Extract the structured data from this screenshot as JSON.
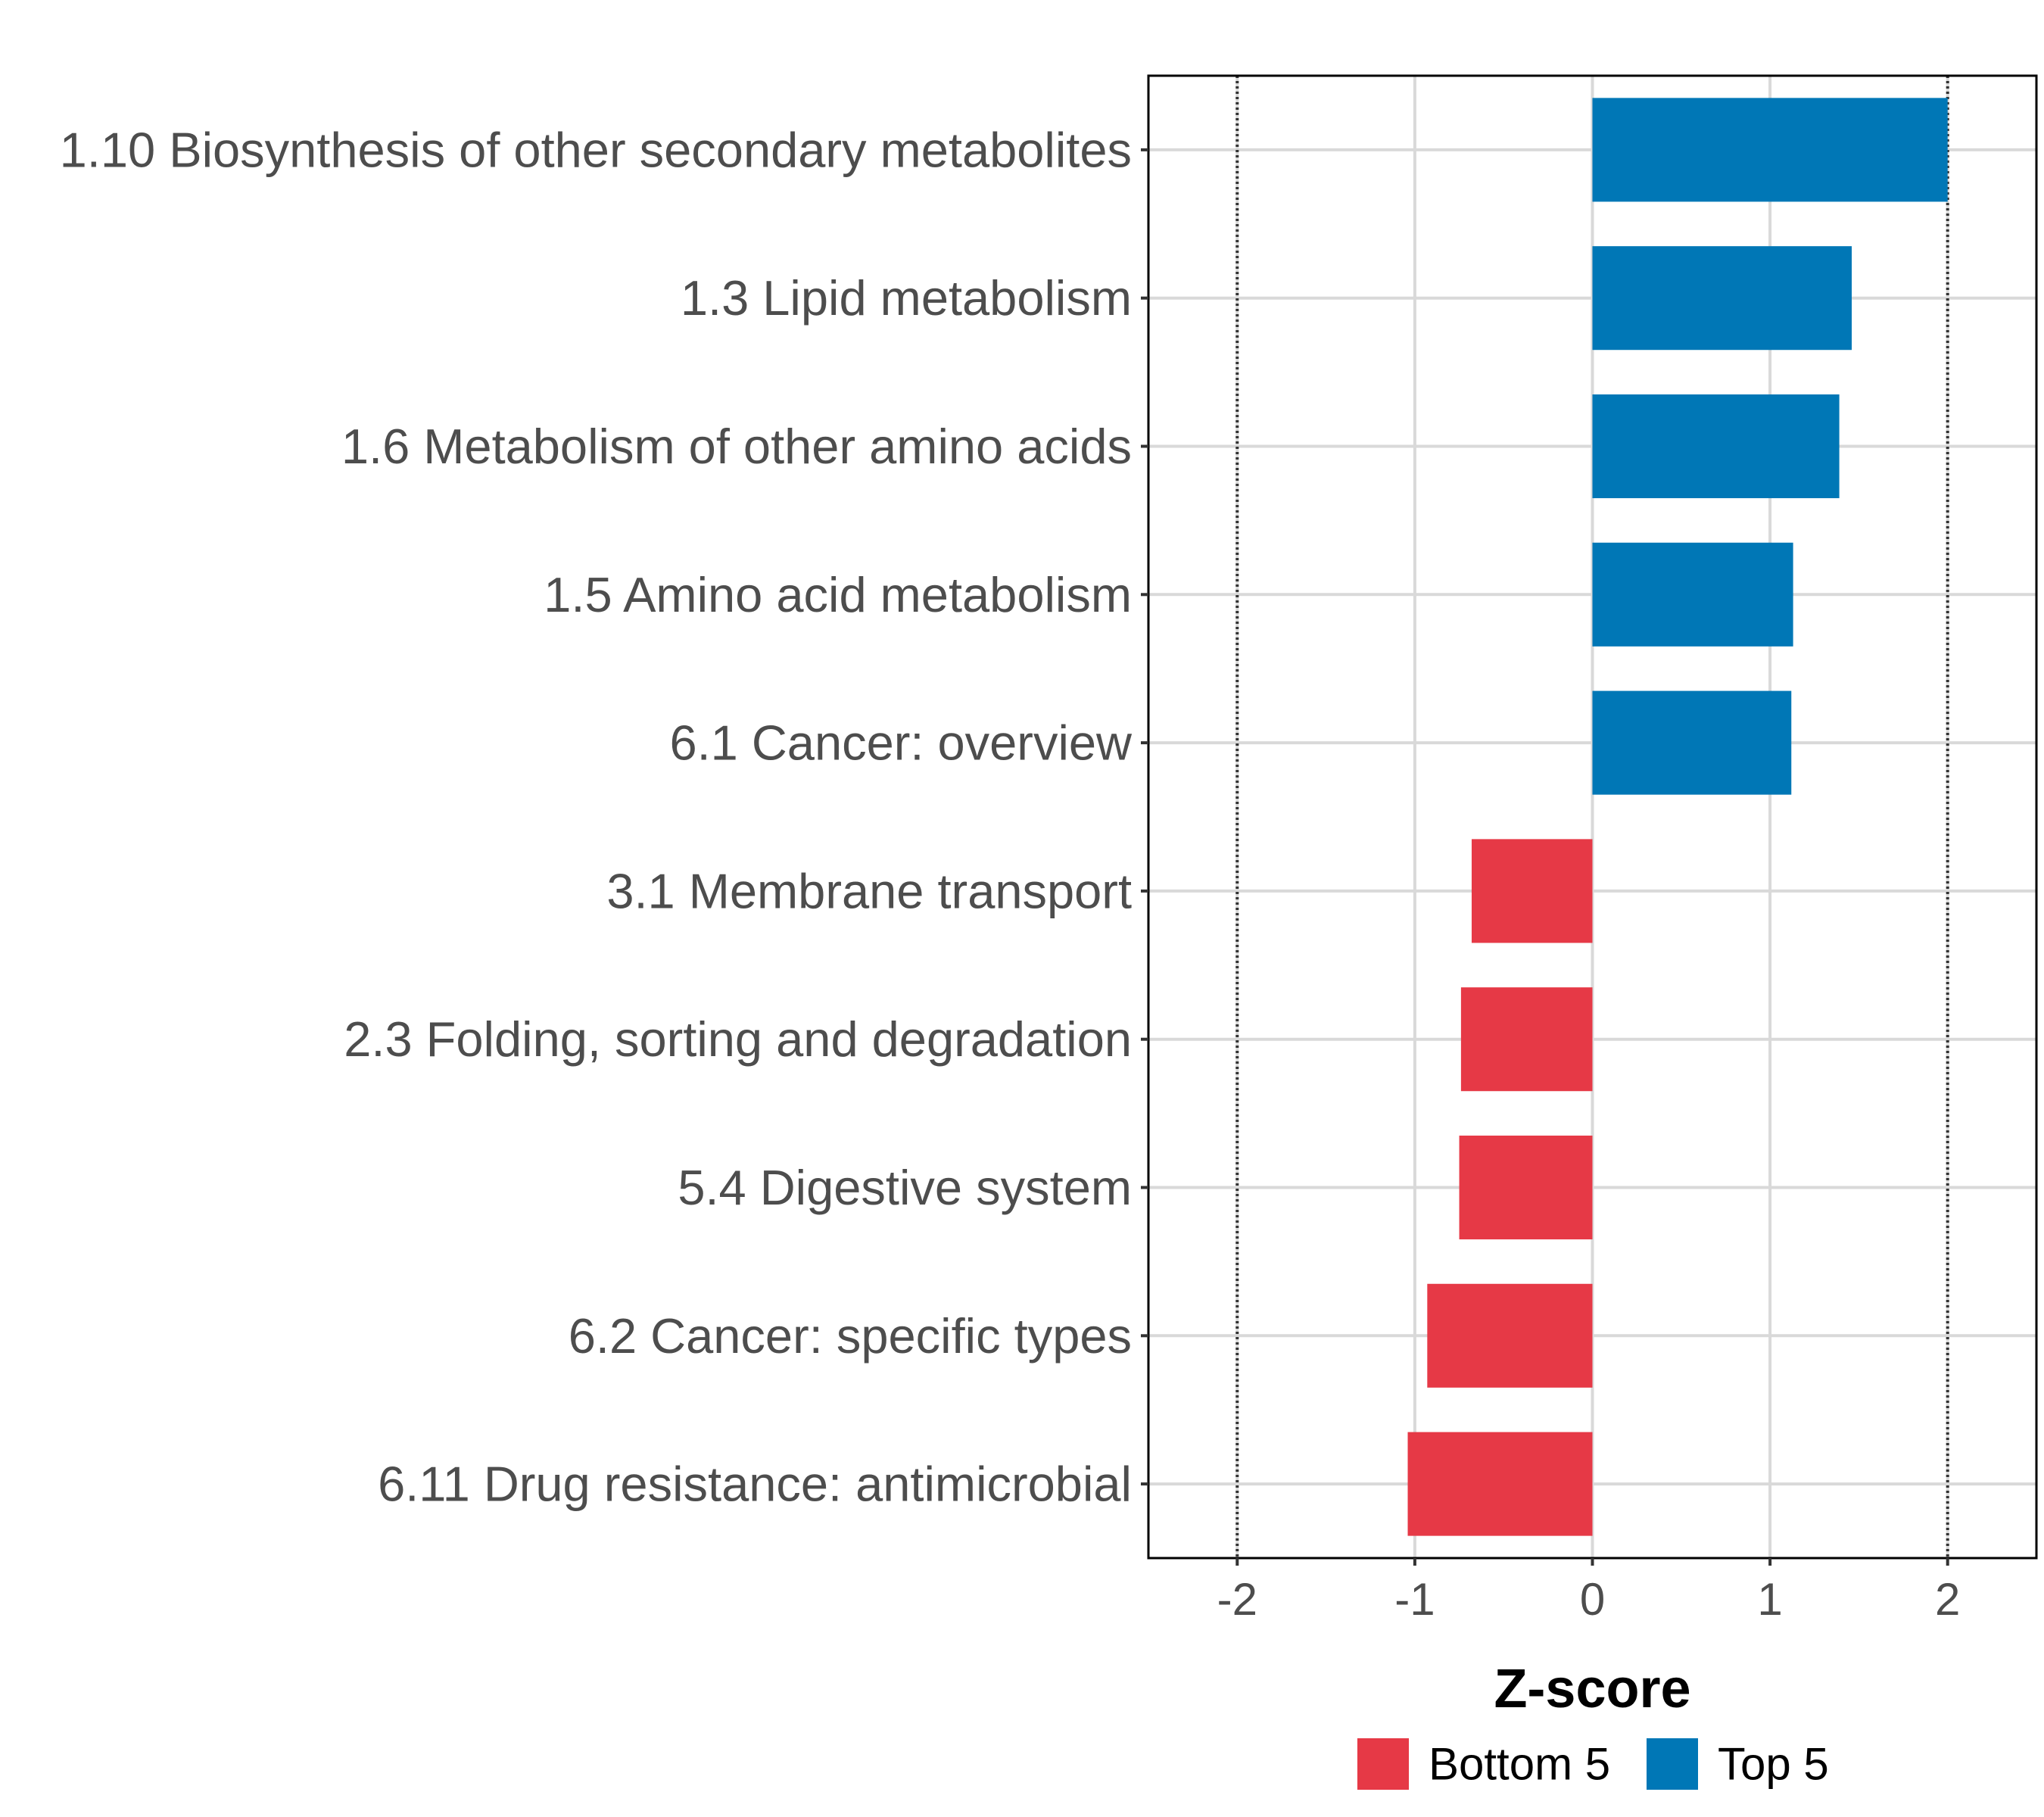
{
  "chart_data": {
    "type": "bar",
    "orientation": "horizontal",
    "categories": [
      "1.10 Biosynthesis of other secondary metabolites",
      "1.3 Lipid metabolism",
      "1.6 Metabolism of other amino acids",
      "1.5 Amino acid metabolism",
      "6.1 Cancer: overview",
      "3.1 Membrane transport",
      "2.3 Folding, sorting and degradation",
      "5.4 Digestive system",
      "6.2 Cancer: specific types",
      "6.11 Drug resistance: antimicrobial"
    ],
    "values": [
      2.0,
      1.46,
      1.39,
      1.13,
      1.12,
      -0.68,
      -0.74,
      -0.75,
      -0.93,
      -1.04
    ],
    "groups": [
      "Top 5",
      "Top 5",
      "Top 5",
      "Top 5",
      "Top 5",
      "Bottom 5",
      "Bottom 5",
      "Bottom 5",
      "Bottom 5",
      "Bottom 5"
    ],
    "xlabel": "Z-score",
    "ylabel": "",
    "xlim": [
      -2.5,
      2.5
    ],
    "xticks": [
      -2,
      -1,
      0,
      1,
      2
    ],
    "xtick_labels": [
      "-2",
      "-1",
      "0",
      "1",
      "2"
    ],
    "reference_lines": [
      -2,
      2
    ],
    "grid": true,
    "legend": {
      "position": "bottom",
      "entries": [
        {
          "label": "Bottom 5",
          "color": "#E63946"
        },
        {
          "label": "Top 5",
          "color": "#0077B6"
        }
      ]
    },
    "colors": {
      "Top 5": "#0077B6",
      "Bottom 5": "#E63946"
    }
  }
}
